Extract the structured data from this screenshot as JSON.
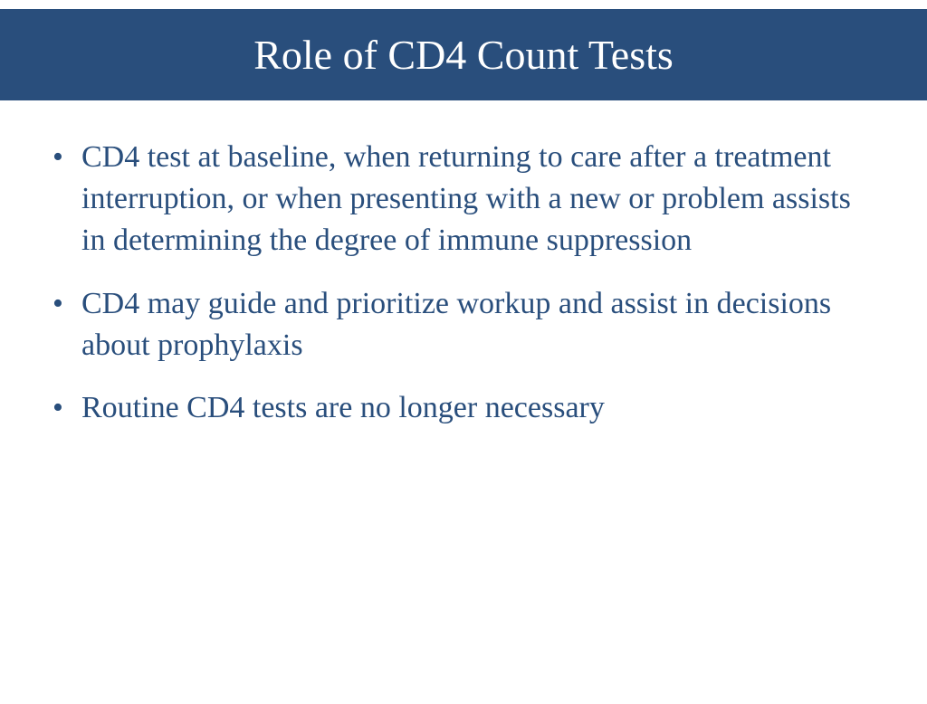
{
  "slide": {
    "title": "Role of CD4 Count Tests",
    "title_bg_color": "#294e7c",
    "title_text_color": "#ffffff",
    "title_fontsize": 46,
    "body_text_color": "#294e7c",
    "body_fontsize": 34,
    "background_color": "#ffffff",
    "bullets": [
      "CD4 test at baseline, when returning to care after a treatment interruption, or when presenting with a new or problem assists in determining the degree of immune suppression",
      "CD4 may guide and prioritize workup and assist in decisions about prophylaxis",
      "Routine CD4 tests are no longer necessary"
    ]
  }
}
